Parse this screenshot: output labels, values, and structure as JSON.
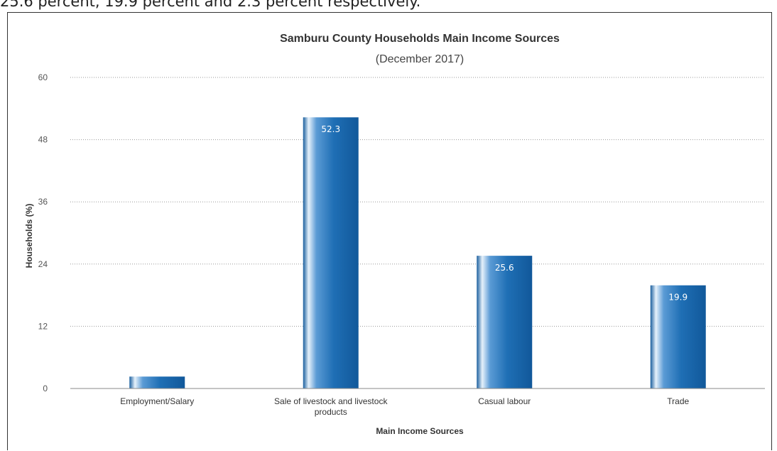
{
  "caption": {
    "text": "25.6 percent, 19.9 percent and 2.3 percent respectively."
  },
  "chart_data": {
    "type": "bar",
    "title": "Samburu County Households Main Income Sources",
    "subtitle": "(December 2017)",
    "xlabel": "Main Income Sources",
    "ylabel": "Households (%)",
    "ylim": [
      0,
      60
    ],
    "yticks": [
      0,
      12,
      24,
      36,
      48,
      60
    ],
    "grid": true,
    "categories": [
      [
        "Employment/Salary"
      ],
      [
        "Sale of livestock and livestock",
        "products"
      ],
      [
        "Casual labour"
      ],
      [
        "Trade"
      ]
    ],
    "values": [
      2.3,
      52.3,
      25.6,
      19.9
    ],
    "data_labels": [
      "",
      "52.3",
      "25.6",
      "19.9"
    ],
    "bar_color": "#1f6fb5"
  }
}
